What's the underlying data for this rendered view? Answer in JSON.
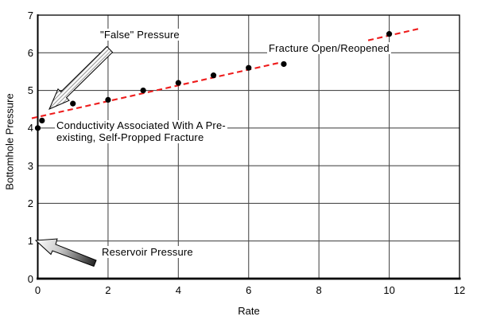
{
  "chart_data": {
    "type": "scatter",
    "title": "",
    "xlabel": "Rate",
    "ylabel": "Bottomhole Pressure",
    "xlim": [
      0,
      12
    ],
    "ylim": [
      0,
      7
    ],
    "x_ticks": [
      0,
      2,
      4,
      6,
      8,
      10,
      12
    ],
    "y_ticks": [
      0,
      1,
      2,
      3,
      4,
      5,
      6,
      7
    ],
    "grid": {
      "vertical_every": 2,
      "horizontal_every": 1,
      "color": "#4d4d4d"
    },
    "legend": "none",
    "series": [
      {
        "name": "measured-pressure-points",
        "type": "scatter",
        "marker": "filled-circle",
        "color": "#000000",
        "points": [
          [
            0,
            4.0
          ],
          [
            0.12,
            4.2
          ],
          [
            1,
            4.65
          ],
          [
            2,
            4.75
          ],
          [
            3,
            5.0
          ],
          [
            4,
            5.2
          ],
          [
            5,
            5.4
          ],
          [
            6,
            5.6
          ],
          [
            7,
            5.7
          ],
          [
            10,
            6.5
          ]
        ]
      },
      {
        "name": "trend-line",
        "type": "line",
        "style": "dashed",
        "color": "#ee1c1c",
        "segments": [
          [
            [
              -0.17,
              4.26
            ],
            [
              6.85,
              5.73
            ]
          ],
          [
            [
              9.4,
              6.33
            ],
            [
              10.9,
              6.65
            ]
          ]
        ]
      }
    ],
    "annotations": [
      {
        "id": "false-pressure",
        "text": "\"False\" Pressure",
        "arrow": "hatched, pointing down-left toward trend start"
      },
      {
        "id": "fracture-open",
        "text": "Fracture Open/Reopened"
      },
      {
        "id": "conductivity",
        "line1": "Conductivity Associated With A Pre-",
        "line2": "existing, Self-Propped Fracture",
        "points_to": "y-intercept point at (0, 4.0)"
      },
      {
        "id": "reservoir-pressure",
        "text": "Reservoir Pressure",
        "arrow": "shaded, pointing up-left toward y = 1"
      }
    ],
    "colors": {
      "background": "#ffffff",
      "axis": "#000000",
      "gridline": "#4d4d4d",
      "marker": "#000000",
      "trendline": "#ee1c1c"
    }
  }
}
